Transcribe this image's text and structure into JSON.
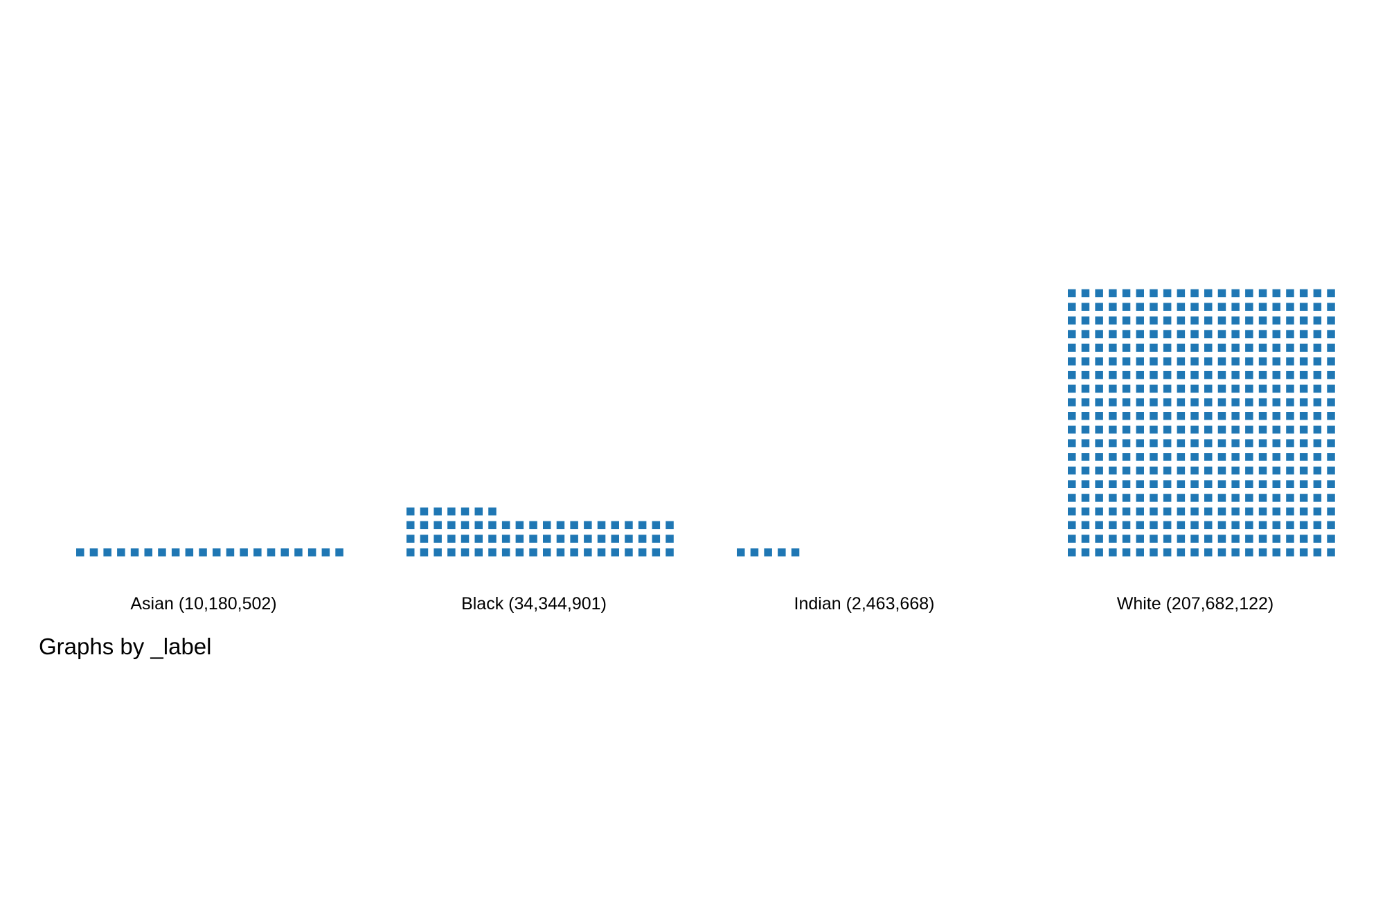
{
  "chart_data": {
    "type": "waffle",
    "note": "Graphs by _label",
    "unit_value_approx": 650000,
    "color": "#1f77b4",
    "panels": [
      {
        "label": "Asian (10,180,502)",
        "category": "Asian",
        "value": 10180502,
        "squares": 20
      },
      {
        "label": "Black (34,344,901)",
        "category": "Black",
        "value": 34344901,
        "squares": 67
      },
      {
        "label": "Indian (2,463,668)",
        "category": "Indian",
        "value": 2463668,
        "squares": 5
      },
      {
        "label": "White (207,682,122)",
        "category": "White",
        "value": 207682122,
        "squares": 400
      }
    ]
  }
}
